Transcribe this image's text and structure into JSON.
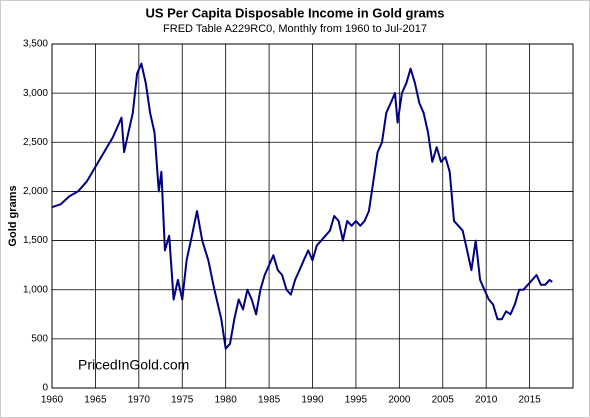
{
  "chart_data": {
    "type": "line",
    "title": "US Per Capita Disposable Income in Gold grams",
    "subtitle": "FRED Table A229RC0, Monthly from 1960 to Jul-2017",
    "y_label": "Gold grams",
    "annotation": "PricedInGold.com",
    "grid": true,
    "xlim": [
      1960,
      2020
    ],
    "xticks": [
      1960,
      1965,
      1970,
      1975,
      1980,
      1985,
      1990,
      1995,
      2000,
      2005,
      2010,
      2015
    ],
    "ylim": [
      0,
      3500
    ],
    "yticks": [
      0,
      500,
      {
        "value": 1000,
        "label": "1,000"
      },
      {
        "value": 1500,
        "label": "1,500"
      },
      {
        "value": 2000,
        "label": "2,000"
      },
      {
        "value": 2500,
        "label": "2,500"
      },
      {
        "value": 3000,
        "label": "3,000"
      },
      {
        "value": 3500,
        "label": "3,500"
      }
    ],
    "series": [
      {
        "name": "Gold grams",
        "color": "#000080",
        "x": [
          1960,
          1961,
          1962,
          1963,
          1964,
          1965,
          1966,
          1967,
          1968,
          1968.3,
          1968.8,
          1969.3,
          1969.8,
          1970.3,
          1970.8,
          1971.3,
          1971.8,
          1972.3,
          1972.6,
          1973,
          1973.5,
          1974,
          1974.5,
          1975,
          1975.5,
          1976,
          1976.7,
          1977.3,
          1978,
          1978.7,
          1979.5,
          1980,
          1980.5,
          1981,
          1981.5,
          1982,
          1982.5,
          1983,
          1983.5,
          1984,
          1984.5,
          1985,
          1985.5,
          1986,
          1986.5,
          1987,
          1987.5,
          1988,
          1988.5,
          1989,
          1989.5,
          1990,
          1990.5,
          1991,
          1991.5,
          1992,
          1992.5,
          1993,
          1993.5,
          1994,
          1994.5,
          1995,
          1995.5,
          1996,
          1996.5,
          1997,
          1997.5,
          1998,
          1998.5,
          1999,
          1999.5,
          1999.8,
          2000.3,
          2000.8,
          2001.3,
          2001.8,
          2002.3,
          2002.8,
          2003.3,
          2003.8,
          2004.3,
          2004.8,
          2005.3,
          2005.8,
          2006.3,
          2006.8,
          2007.3,
          2007.8,
          2008.3,
          2008.8,
          2009.3,
          2009.8,
          2010.3,
          2010.8,
          2011.3,
          2011.8,
          2012.3,
          2012.8,
          2013.3,
          2013.8,
          2014.3,
          2014.8,
          2015.3,
          2015.8,
          2016.3,
          2016.8,
          2017.3,
          2017.6
        ],
        "values": [
          1840,
          1870,
          1950,
          2000,
          2100,
          2250,
          2400,
          2550,
          2750,
          2400,
          2600,
          2800,
          3200,
          3300,
          3100,
          2800,
          2600,
          2000,
          2200,
          1400,
          1550,
          900,
          1100,
          900,
          1300,
          1500,
          1800,
          1500,
          1300,
          1000,
          700,
          400,
          450,
          700,
          900,
          800,
          1000,
          900,
          750,
          1000,
          1150,
          1250,
          1350,
          1200,
          1150,
          1000,
          950,
          1100,
          1200,
          1300,
          1400,
          1300,
          1450,
          1500,
          1550,
          1600,
          1750,
          1700,
          1500,
          1700,
          1650,
          1700,
          1650,
          1700,
          1800,
          2100,
          2400,
          2500,
          2800,
          2900,
          3000,
          2700,
          3000,
          3100,
          3250,
          3100,
          2900,
          2800,
          2600,
          2300,
          2450,
          2300,
          2350,
          2200,
          1700,
          1650,
          1600,
          1400,
          1200,
          1500,
          1100,
          1000,
          900,
          850,
          700,
          700,
          780,
          750,
          850,
          1000,
          1000,
          1050,
          1100,
          1150,
          1050,
          1050,
          1100,
          1080
        ]
      }
    ]
  }
}
